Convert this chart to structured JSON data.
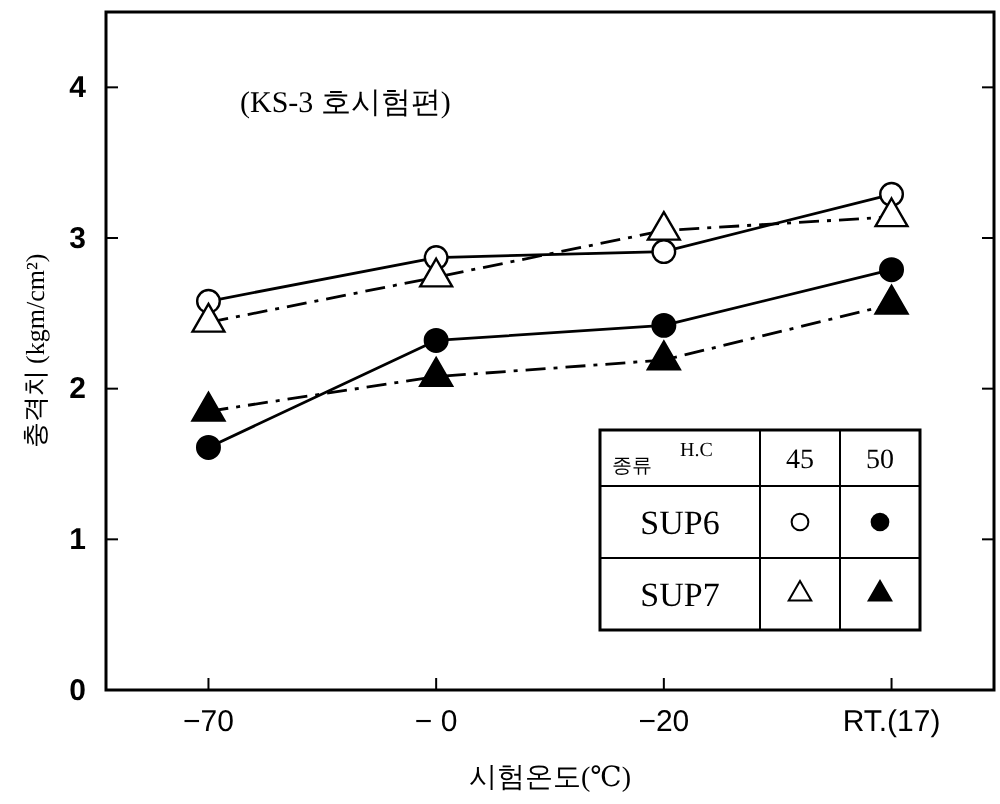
{
  "chart_data": {
    "type": "line",
    "subtitle": "(KS-3 호시험편)",
    "xlabel": "시험온도(℃)",
    "ylabel": "충격치 (kgm/cm²)",
    "legend_title": "종류",
    "annotations": [
      "H.C",
      "45",
      "50"
    ],
    "categories": [
      "−70",
      "− 0",
      "−20",
      "RT.(17)"
    ],
    "ylim": [
      0,
      4.5
    ],
    "yticks": [
      0,
      1,
      2,
      3,
      4
    ],
    "grid": false,
    "legend": "bottom right",
    "series": [
      {
        "name": "SUP6",
        "color": "#000000",
        "marker": "circle",
        "line_style": "solid",
        "values": [
          2.58,
          2.87,
          2.91,
          3.29
        ]
      },
      {
        "color": "#000000",
        "marker": "circle",
        "line_style": "solid",
        "values": [
          1.61,
          2.32,
          2.42,
          2.79
        ]
      },
      {
        "name": "SUP7",
        "color": "#000000",
        "marker": "triangle",
        "line_style": "dashdot",
        "values": [
          2.44,
          2.74,
          3.05,
          3.14
        ]
      },
      {
        "color": "#000000",
        "marker": "triangle",
        "line_style": "dashdot",
        "values": [
          1.85,
          2.08,
          2.19,
          2.56
        ]
      }
    ]
  }
}
